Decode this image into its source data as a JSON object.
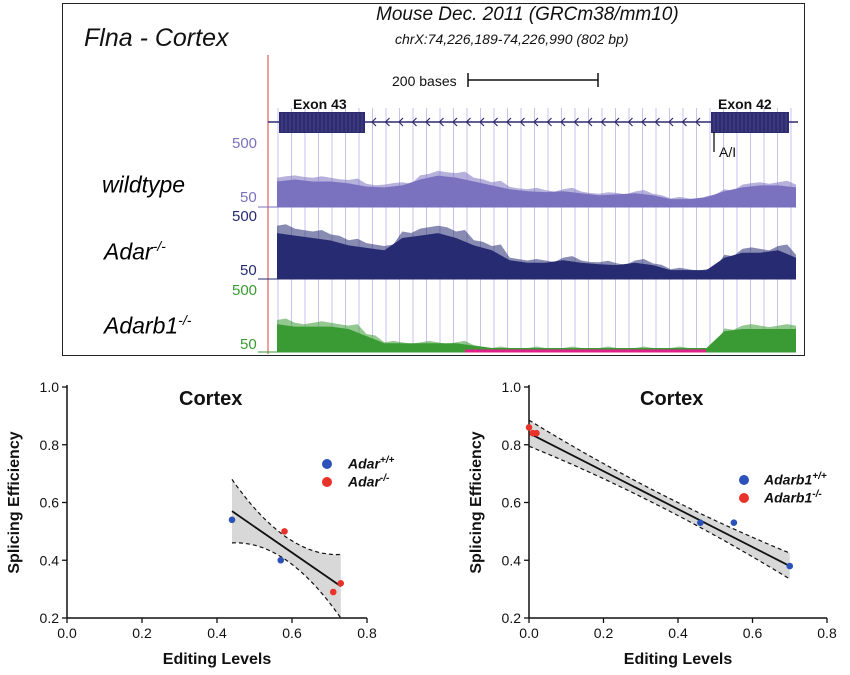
{
  "browser": {
    "gene_title": "Flna - Cortex",
    "assembly": "Mouse Dec. 2011 (GRCm38/mm10)",
    "coordinates": "chrX:74,226,189-74,226,990 (802 bp)",
    "scale_label": "200 bases",
    "exon_left": "Exon 43",
    "exon_right": "Exon 42",
    "site_label": "A/I",
    "tracks": [
      {
        "name": "wildtype",
        "sup": "",
        "color": "#7b72bf",
        "scale_top": "500",
        "scale_bottom": "50",
        "profile": [
          0.55,
          0.6,
          0.55,
          0.55,
          0.5,
          0.42,
          0.4,
          0.45,
          0.6,
          0.7,
          0.65,
          0.55,
          0.45,
          0.35,
          0.3,
          0.28,
          0.3,
          0.25,
          0.2,
          0.22,
          0.25,
          0.2,
          0.1,
          0.1,
          0.15,
          0.3,
          0.4,
          0.45,
          0.45,
          0.4
        ]
      },
      {
        "name": "Adar",
        "sup": "-/-",
        "color": "#262b72",
        "scale_top": "500",
        "scale_bottom": "50",
        "profile": [
          0.85,
          0.8,
          0.75,
          0.7,
          0.6,
          0.55,
          0.5,
          0.75,
          0.8,
          0.85,
          0.75,
          0.6,
          0.5,
          0.3,
          0.25,
          0.25,
          0.3,
          0.25,
          0.22,
          0.2,
          0.25,
          0.2,
          0.1,
          0.1,
          0.1,
          0.35,
          0.45,
          0.45,
          0.5,
          0.35
        ]
      },
      {
        "name": "Adarb1",
        "sup": "-/-",
        "color": "#3a9a34",
        "scale_top": "500",
        "scale_bottom": "50",
        "profile": [
          0.5,
          0.45,
          0.45,
          0.45,
          0.4,
          0.25,
          0.1,
          0.1,
          0.1,
          0.1,
          0.1,
          0.05,
          0,
          0,
          0,
          0,
          0,
          0,
          0,
          0,
          0,
          0,
          0,
          0,
          0,
          0.35,
          0.4,
          0.4,
          0.4,
          0.4
        ]
      }
    ],
    "colors": {
      "intron_line": "#2e2b6e",
      "exon": "#2e2b6e",
      "grid": "#c9c3ec",
      "missing": "#e0218a",
      "left_edge": "#e06060"
    }
  },
  "chart_data": [
    {
      "type": "scatter",
      "title": "Cortex",
      "xlabel": "Editing Levels",
      "ylabel": "Splicing Efficiency",
      "xlim": [
        0.0,
        0.8
      ],
      "ylim": [
        0.2,
        1.0
      ],
      "xticks": [
        "0.0",
        "0.2",
        "0.4",
        "0.6",
        "0.8"
      ],
      "yticks": [
        "0.2",
        "0.4",
        "0.6",
        "0.8",
        "1.0"
      ],
      "series": [
        {
          "name": "Adar",
          "sup": "+/+",
          "color": "#2a52b8",
          "points": [
            [
              0.44,
              0.54
            ],
            [
              0.57,
              0.4
            ]
          ]
        },
        {
          "name": "Adar",
          "sup": "-/-",
          "color": "#e8322a",
          "points": [
            [
              0.58,
              0.5
            ],
            [
              0.71,
              0.29
            ],
            [
              0.73,
              0.32
            ]
          ]
        }
      ],
      "fit": {
        "x": [
          0.44,
          0.73
        ],
        "y": [
          0.57,
          0.31
        ],
        "ci_half_width_ends": 0.11,
        "ci_half_width_mid": 0.04
      }
    },
    {
      "type": "scatter",
      "title": "Cortex",
      "xlabel": "Editing Levels",
      "ylabel": "Splicing Efficiency",
      "xlim": [
        0.0,
        0.8
      ],
      "ylim": [
        0.2,
        1.0
      ],
      "xticks": [
        "0.0",
        "0.2",
        "0.4",
        "0.6",
        "0.8"
      ],
      "yticks": [
        "0.2",
        "0.4",
        "0.6",
        "0.8",
        "1.0"
      ],
      "series": [
        {
          "name": "Adarb1",
          "sup": "+/+",
          "color": "#2a52b8",
          "points": [
            [
              0.46,
              0.53
            ],
            [
              0.55,
              0.53
            ],
            [
              0.7,
              0.38
            ]
          ]
        },
        {
          "name": "Adarb1",
          "sup": "-/-",
          "color": "#e8322a",
          "points": [
            [
              0.0,
              0.86
            ],
            [
              0.01,
              0.84
            ],
            [
              0.02,
              0.84
            ]
          ]
        }
      ],
      "fit": {
        "x": [
          0.0,
          0.7
        ],
        "y": [
          0.84,
          0.38
        ],
        "ci_half_width_ends": 0.045,
        "ci_half_width_mid": 0.022
      }
    }
  ]
}
